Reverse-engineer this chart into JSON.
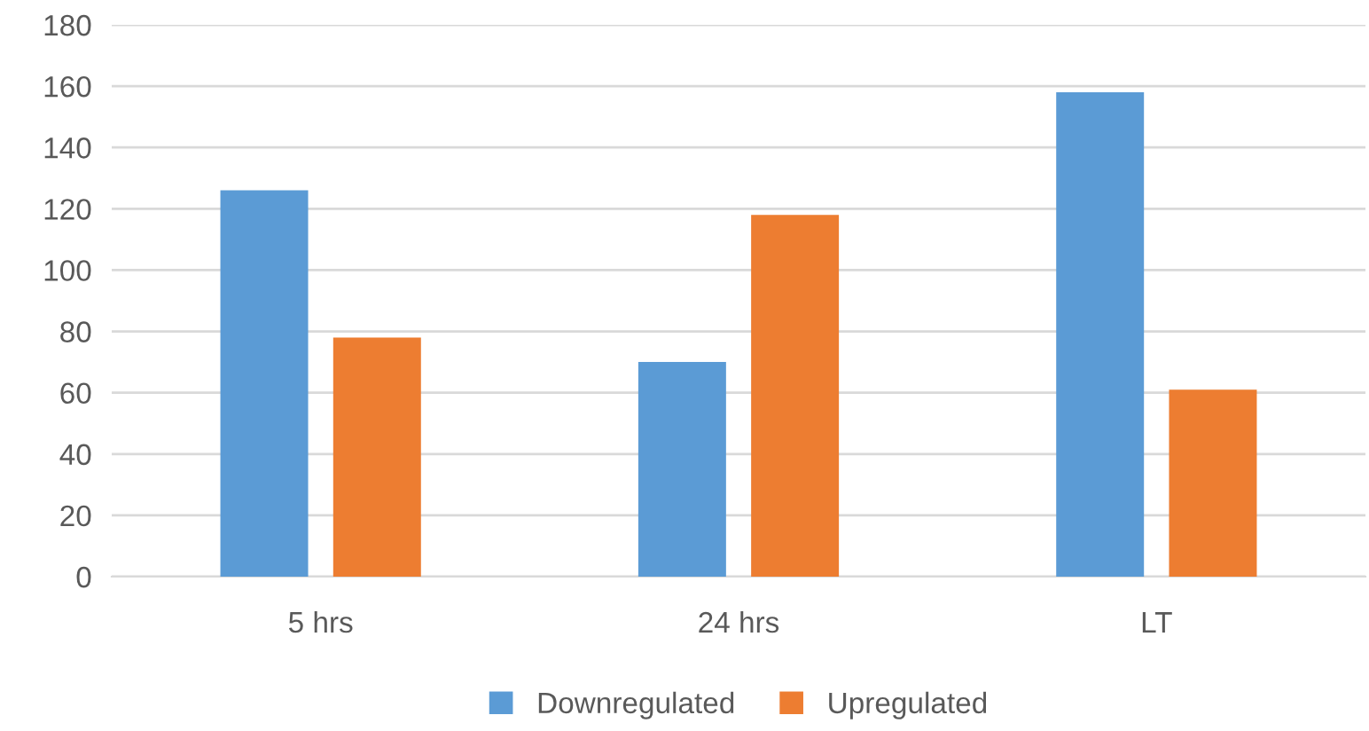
{
  "chart_data": {
    "type": "bar",
    "categories": [
      "5 hrs",
      "24 hrs",
      "LT"
    ],
    "series": [
      {
        "name": "Downregulated",
        "color": "#5b9bd5",
        "values": [
          126,
          70,
          158
        ]
      },
      {
        "name": "Upregulated",
        "color": "#ed7d31",
        "values": [
          78,
          118,
          61
        ]
      }
    ],
    "ylim": [
      0,
      180
    ],
    "yticks": [
      0,
      20,
      40,
      60,
      80,
      100,
      120,
      140,
      160,
      180
    ],
    "grid": "y",
    "legend": "bottom"
  }
}
